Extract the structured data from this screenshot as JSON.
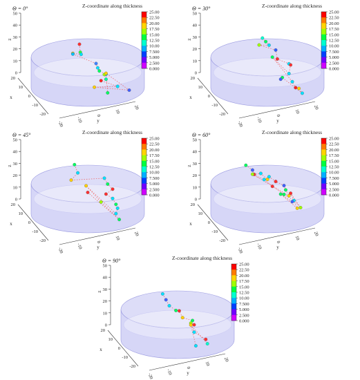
{
  "figure": {
    "colorbar_title": "Z-coordinate along thickness",
    "colorbar_ticks": [
      "25.00",
      "22.50",
      "20.00",
      "17.50",
      "15.00",
      "12.50",
      "10.00",
      "7.500",
      "5.000",
      "2.500",
      "0.000"
    ],
    "colorbar_colors": [
      "#ff0000",
      "#ff7a00",
      "#ffd400",
      "#a0ff00",
      "#00ff40",
      "#00ffd0",
      "#00b0ff",
      "#0040ff",
      "#7000ff",
      "#d000ff"
    ],
    "cylinder_fill": "#b4b4f0",
    "trajectory_color": "#ee6a6a",
    "z_ticks": [
      "50",
      "40",
      "30",
      "20",
      "10",
      "0"
    ],
    "z_label": "z",
    "x_ticks": [
      "20",
      "10",
      "0",
      "-10",
      "-20"
    ],
    "x_label": "x",
    "y_ticks": [
      "-20",
      "-10",
      "0",
      "10",
      "20"
    ],
    "y_label": "y"
  },
  "chart_data": [
    {
      "type": "scatter",
      "angle_label": "Θ = 0°",
      "z_range": [
        0,
        50
      ],
      "points": [
        {
          "x": -2,
          "y": -4,
          "z": 36,
          "c": "#ff3030"
        },
        {
          "x": 0,
          "y": -3,
          "z": 30,
          "c": "#30ff40"
        },
        {
          "x": 2,
          "y": -2,
          "z": 29,
          "c": "#00e0ff"
        },
        {
          "x": -6,
          "y": -8,
          "z": 26,
          "c": "#ffd000"
        },
        {
          "x": -12,
          "y": -10,
          "z": 23,
          "c": "#00c0ff"
        },
        {
          "x": -4,
          "y": 2,
          "z": 20,
          "c": "#4080ff"
        },
        {
          "x": 0,
          "y": 4,
          "z": 18,
          "c": "#00e0ff"
        },
        {
          "x": 4,
          "y": 6,
          "z": 17,
          "c": "#00ff60"
        },
        {
          "x": 2,
          "y": 8,
          "z": 14,
          "c": "#00c0ff"
        },
        {
          "x": -2,
          "y": 6,
          "z": 12,
          "c": "#a0ff00"
        },
        {
          "x": 8,
          "y": 10,
          "z": 12,
          "c": "#00ffa0"
        },
        {
          "x": 2,
          "y": 6,
          "z": 8,
          "c": "#ff2020"
        },
        {
          "x": 6,
          "y": 14,
          "z": 6,
          "c": "#00e0ff"
        },
        {
          "x": 10,
          "y": 6,
          "z": 5,
          "c": "#ffd000"
        },
        {
          "x": 4,
          "y": 18,
          "z": 3,
          "c": "#4060ff"
        },
        {
          "x": -10,
          "y": 4,
          "z": 10,
          "c": "#ffd000"
        },
        {
          "x": 12,
          "y": 12,
          "z": 2,
          "c": "#00ff60"
        }
      ]
    },
    {
      "type": "scatter",
      "angle_label": "Θ = 30°",
      "z_range": [
        0,
        50
      ],
      "points": [
        {
          "x": -6,
          "y": -4,
          "z": 40,
          "c": "#00ffd0"
        },
        {
          "x": -4,
          "y": -2,
          "z": 38,
          "c": "#00ff60"
        },
        {
          "x": -2,
          "y": 0,
          "z": 36,
          "c": "#00e0ff"
        },
        {
          "x": -8,
          "y": -6,
          "z": 33,
          "c": "#a0ff00"
        },
        {
          "x": 2,
          "y": 4,
          "z": 34,
          "c": "#3060ff"
        },
        {
          "x": 6,
          "y": 6,
          "z": 28,
          "c": "#ff3030"
        },
        {
          "x": 4,
          "y": 10,
          "z": 24,
          "c": "#00e0ff"
        },
        {
          "x": -4,
          "y": 8,
          "z": 20,
          "c": "#ff3030"
        },
        {
          "x": 10,
          "y": 12,
          "z": 18,
          "c": "#00e0ff"
        },
        {
          "x": -12,
          "y": -2,
          "z": 22,
          "c": "#00ff60"
        },
        {
          "x": 12,
          "y": 14,
          "z": 12,
          "c": "#00e0ff"
        },
        {
          "x": 14,
          "y": 16,
          "z": 8,
          "c": "#ff2020"
        },
        {
          "x": 10,
          "y": 16,
          "z": 6,
          "c": "#ffd000"
        },
        {
          "x": 12,
          "y": 18,
          "z": 3,
          "c": "#00e0ff"
        },
        {
          "x": 0,
          "y": 6,
          "z": 10,
          "c": "#00ff60"
        },
        {
          "x": 14,
          "y": 10,
          "z": 14,
          "c": "#4060ff"
        }
      ]
    },
    {
      "type": "scatter",
      "angle_label": "Θ = 45°",
      "z_range": [
        0,
        50
      ],
      "points": [
        {
          "x": -14,
          "y": -10,
          "z": 36,
          "c": "#00ff60"
        },
        {
          "x": -12,
          "y": -8,
          "z": 30,
          "c": "#00e0ff"
        },
        {
          "x": -10,
          "y": -10,
          "z": 24,
          "c": "#ffd000"
        },
        {
          "x": 4,
          "y": 8,
          "z": 34,
          "c": "#00e0ff"
        },
        {
          "x": 6,
          "y": 10,
          "z": 30,
          "c": "#00ff60"
        },
        {
          "x": 6,
          "y": 12,
          "z": 26,
          "c": "#ff3030"
        },
        {
          "x": 8,
          "y": 10,
          "z": 22,
          "c": "#ff3030"
        },
        {
          "x": 6,
          "y": 12,
          "z": 18,
          "c": "#00e0ff"
        },
        {
          "x": 8,
          "y": 14,
          "z": 14,
          "c": "#00ff60"
        },
        {
          "x": 6,
          "y": 14,
          "z": 10,
          "c": "#00e0ff"
        },
        {
          "x": 8,
          "y": 14,
          "z": 6,
          "c": "#00e0ff"
        },
        {
          "x": -16,
          "y": -6,
          "z": 18,
          "c": "#ffd000"
        },
        {
          "x": -4,
          "y": 4,
          "z": 10,
          "c": "#a0ff00"
        },
        {
          "x": 10,
          "y": 16,
          "z": 2,
          "c": "#00ff60"
        },
        {
          "x": -12,
          "y": -4,
          "z": 14,
          "c": "#ff3030"
        }
      ]
    },
    {
      "type": "scatter",
      "angle_label": "Θ = 60°",
      "z_range": [
        0,
        50
      ],
      "points": [
        {
          "x": -16,
          "y": -14,
          "z": 34,
          "c": "#00ff60"
        },
        {
          "x": -12,
          "y": -10,
          "z": 32,
          "c": "#4060ff"
        },
        {
          "x": -8,
          "y": -8,
          "z": 30,
          "c": "#ff3030"
        },
        {
          "x": -4,
          "y": -4,
          "z": 33,
          "c": "#00e0ff"
        },
        {
          "x": 0,
          "y": 0,
          "z": 30,
          "c": "#ffd000"
        },
        {
          "x": 4,
          "y": 2,
          "z": 34,
          "c": "#00e0ff"
        },
        {
          "x": 8,
          "y": 6,
          "z": 32,
          "c": "#ff3030"
        },
        {
          "x": 10,
          "y": 10,
          "z": 30,
          "c": "#4060ff"
        },
        {
          "x": 14,
          "y": 12,
          "z": 28,
          "c": "#00ff60"
        },
        {
          "x": 16,
          "y": 14,
          "z": 24,
          "c": "#ffd000"
        },
        {
          "x": -18,
          "y": -12,
          "z": 26,
          "c": "#a0ff00"
        },
        {
          "x": -14,
          "y": -6,
          "z": 24,
          "c": "#00e0ff"
        },
        {
          "x": -6,
          "y": 0,
          "z": 22,
          "c": "#ff3030"
        },
        {
          "x": 4,
          "y": 8,
          "z": 20,
          "c": "#00ff60"
        },
        {
          "x": 10,
          "y": 14,
          "z": 18,
          "c": "#00e0ff"
        },
        {
          "x": 14,
          "y": 18,
          "z": 14,
          "c": "#a0ff00"
        },
        {
          "x": -10,
          "y": 6,
          "z": 16,
          "c": "#ff3030"
        },
        {
          "x": 6,
          "y": 14,
          "z": 10,
          "c": "#ffd000"
        },
        {
          "x": -16,
          "y": 0,
          "z": 12,
          "c": "#00ff60"
        },
        {
          "x": 18,
          "y": 16,
          "z": 20,
          "c": "#4060ff"
        }
      ]
    },
    {
      "type": "scatter",
      "angle_label": "Θ = 90°",
      "z_range": [
        0,
        50
      ],
      "points": [
        {
          "x": -6,
          "y": -8,
          "z": 36,
          "c": "#00e0ff"
        },
        {
          "x": -4,
          "y": -6,
          "z": 32,
          "c": "#4060ff"
        },
        {
          "x": -2,
          "y": -4,
          "z": 28,
          "c": "#00e0ff"
        },
        {
          "x": 2,
          "y": 0,
          "z": 26,
          "c": "#00ff60"
        },
        {
          "x": -8,
          "y": -2,
          "z": 22,
          "c": "#ff3030"
        },
        {
          "x": 6,
          "y": 4,
          "z": 22,
          "c": "#ffd000"
        },
        {
          "x": 0,
          "y": 6,
          "z": 18,
          "c": "#00ff60"
        },
        {
          "x": 4,
          "y": 8,
          "z": 16,
          "c": "#ff3030"
        },
        {
          "x": -4,
          "y": 4,
          "z": 14,
          "c": "#a0ff00"
        },
        {
          "x": 10,
          "y": 10,
          "z": 12,
          "c": "#00e0ff"
        },
        {
          "x": 8,
          "y": 14,
          "z": 6,
          "c": "#ff3030"
        },
        {
          "x": 12,
          "y": 16,
          "z": 4,
          "c": "#00ffd0"
        },
        {
          "x": -10,
          "y": 2,
          "z": 10,
          "c": "#ffd000"
        },
        {
          "x": 14,
          "y": 12,
          "z": 2,
          "c": "#00e0ff"
        }
      ]
    }
  ]
}
